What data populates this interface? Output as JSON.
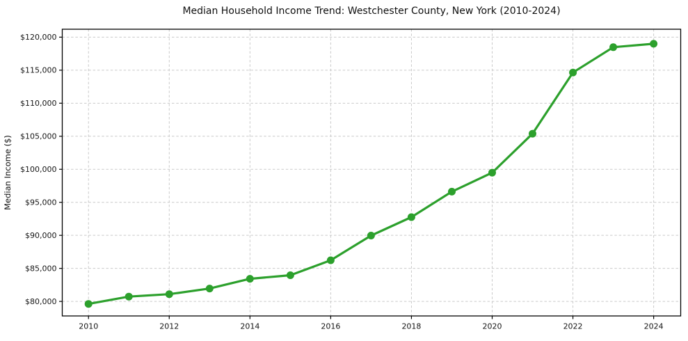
{
  "figure": {
    "background": "#ffffff"
  },
  "chart_data": {
    "type": "line",
    "title": "Median Household Income Trend: Westchester County, New York (2010-2024)",
    "xlabel": "",
    "ylabel": "Median Income ($)",
    "x": [
      2010,
      2011,
      2012,
      2013,
      2014,
      2015,
      2016,
      2017,
      2018,
      2019,
      2020,
      2021,
      2022,
      2023,
      2024
    ],
    "values": [
      79619,
      80725,
      81093,
      81946,
      83422,
      83958,
      86226,
      89968,
      92758,
      96610,
      99489,
      105387,
      114651,
      118478,
      119000
    ],
    "xticks": [
      2010,
      2012,
      2014,
      2016,
      2018,
      2020,
      2022,
      2024
    ],
    "xtick_labels": [
      "2010",
      "2012",
      "2014",
      "2016",
      "2018",
      "2020",
      "2022",
      "2024"
    ],
    "yticks": [
      80000,
      85000,
      90000,
      95000,
      100000,
      105000,
      110000,
      115000,
      120000
    ],
    "ytick_labels": [
      "$80,000",
      "$85,000",
      "$90,000",
      "$95,000",
      "$100,000",
      "$105,000",
      "$110,000",
      "$115,000",
      "$120,000"
    ],
    "xlim": [
      2009.35,
      2024.67
    ],
    "ylim": [
      77800,
      121200
    ],
    "grid": true,
    "grid_line_style": "dashed",
    "legend": "none",
    "line_color": "#2ca02c",
    "marker_color": "#2ca02c",
    "marker_shape": "circle",
    "grid_color": "#c9c9c9",
    "axis_color": "#000000",
    "text_color": "#0f0f0f"
  }
}
